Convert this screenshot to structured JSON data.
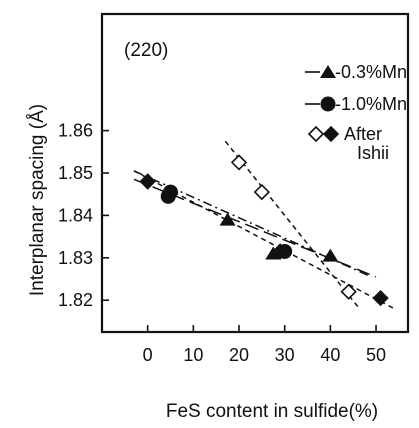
{
  "chart_data": {
    "type": "scatter",
    "annotation": "(220)",
    "xlabel": "FeS content in sulfide(%)",
    "ylabel": "Interplanar spacing (Å)",
    "xlim": [
      -10,
      57
    ],
    "ylim": [
      1.8125,
      1.8875
    ],
    "xticks": [
      0,
      10,
      20,
      30,
      40,
      50
    ],
    "yticks": [
      1.82,
      1.83,
      1.84,
      1.85,
      1.86
    ],
    "xtick_labels": [
      "0",
      "10",
      "20",
      "30",
      "40",
      "50"
    ],
    "ytick_labels": [
      "1.82",
      "1.83",
      "1.84",
      "1.85",
      "1.86"
    ],
    "grid": false,
    "legend_position": "top-right",
    "series": [
      {
        "name": "0.3%Mn",
        "marker": "filled-triangle",
        "line": "long-dash",
        "x": [
          17.5,
          27.5,
          40
        ],
        "y": [
          1.839,
          1.831,
          1.8305
        ],
        "fit": [
          [
            -3,
            1.8485
          ],
          [
            50,
            1.8255
          ]
        ]
      },
      {
        "name": "1.0%Mn",
        "marker": "filled-circle",
        "line": "dash-dot",
        "x": [
          4.5,
          5,
          30
        ],
        "y": [
          1.8445,
          1.8455,
          1.8315
        ],
        "fit": [
          [
            -3,
            1.8505
          ],
          [
            49,
            1.8255
          ]
        ]
      },
      {
        "name": "After Ishii",
        "marker": "diamond",
        "line": "dashed",
        "x": [
          0,
          20,
          25,
          44
        ],
        "y": [
          1.848,
          1.8525,
          1.8455,
          1.822
        ],
        "filled": [
          true,
          false,
          false,
          false
        ]
      },
      {
        "name": "",
        "marker": "filled-diamond",
        "line": "short-dash",
        "x": [
          0,
          29,
          51
        ],
        "y": [
          1.848,
          1.8315,
          1.8205
        ],
        "fit": [
          [
            -3,
            1.8505
          ],
          [
            54,
            1.818
          ]
        ]
      },
      {
        "name": "",
        "marker": "none",
        "line": "short-dash",
        "x": [],
        "y": [],
        "fit": [
          [
            17,
            1.8575
          ],
          [
            46,
            1.8185
          ]
        ]
      }
    ],
    "legend": {
      "items": [
        {
          "label": "-0.3%Mn",
          "marker": "filled-triangle"
        },
        {
          "label": "-1.0%Mn",
          "marker": "filled-circle"
        },
        {
          "label": "After",
          "label2": "Ishii",
          "marker": "diamond-pair"
        }
      ]
    }
  }
}
